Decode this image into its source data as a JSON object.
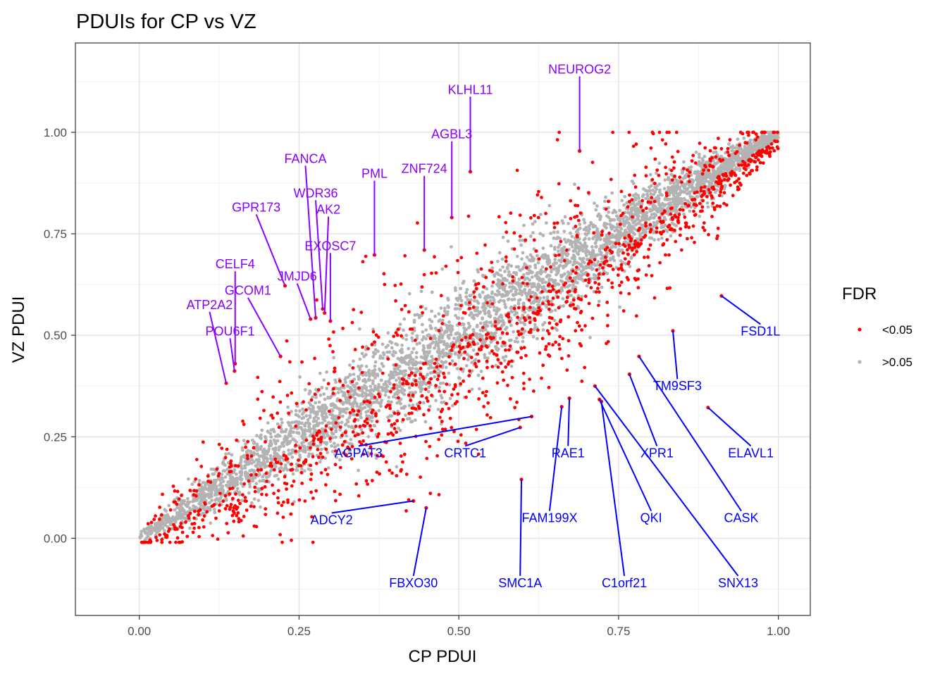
{
  "chart_data": {
    "type": "scatter",
    "title": "PDUIs for CP vs VZ",
    "xlabel": "CP PDUI",
    "ylabel": "VZ PDUI",
    "xlim": [
      -0.1,
      1.05
    ],
    "ylim": [
      -0.19,
      1.22
    ],
    "xticks": [
      0.0,
      0.25,
      0.5,
      0.75,
      1.0
    ],
    "xtick_labels": [
      "0.00",
      "0.25",
      "0.50",
      "0.75",
      "1.00"
    ],
    "yticks": [
      0.0,
      0.25,
      0.5,
      0.75,
      1.0
    ],
    "ytick_labels": [
      "0.00",
      "0.25",
      "0.50",
      "0.75",
      "1.00"
    ],
    "grid": true,
    "legend": {
      "title": "FDR",
      "position": "right",
      "entries": [
        {
          "label": "<0.05",
          "color": "#ff0000"
        },
        {
          "label": ">0.05",
          "color": "#b3b3b3"
        }
      ]
    },
    "colors": {
      "sig": "#ff0000",
      "nonsig": "#b3b3b3",
      "up_label": "#8b00ff",
      "down_label": "#0000ff"
    },
    "labeled_points": [
      {
        "gene": "NEUROG2",
        "x": 0.689,
        "y": 0.954,
        "group": "up",
        "label_x": 0.689,
        "label_y": 1.155
      },
      {
        "gene": "KLHL11",
        "x": 0.518,
        "y": 0.903,
        "group": "up",
        "label_x": 0.518,
        "label_y": 1.105
      },
      {
        "gene": "AGBL3",
        "x": 0.489,
        "y": 0.79,
        "group": "up",
        "label_x": 0.489,
        "label_y": 0.995
      },
      {
        "gene": "ZNF724",
        "x": 0.446,
        "y": 0.71,
        "group": "up",
        "label_x": 0.446,
        "label_y": 0.91
      },
      {
        "gene": "PML",
        "x": 0.368,
        "y": 0.698,
        "group": "up",
        "label_x": 0.368,
        "label_y": 0.898
      },
      {
        "gene": "FANCA",
        "x": 0.276,
        "y": 0.543,
        "group": "up",
        "label_x": 0.26,
        "label_y": 0.935
      },
      {
        "gene": "WDR36",
        "x": 0.287,
        "y": 0.565,
        "group": "up",
        "label_x": 0.276,
        "label_y": 0.85
      },
      {
        "gene": "AK2",
        "x": 0.29,
        "y": 0.555,
        "group": "up",
        "label_x": 0.296,
        "label_y": 0.81
      },
      {
        "gene": "EXOSC7",
        "x": 0.299,
        "y": 0.535,
        "group": "up",
        "label_x": 0.299,
        "label_y": 0.72
      },
      {
        "gene": "GPR173",
        "x": 0.228,
        "y": 0.622,
        "group": "up",
        "label_x": 0.183,
        "label_y": 0.815
      },
      {
        "gene": "JMJD6",
        "x": 0.268,
        "y": 0.54,
        "group": "up",
        "label_x": 0.247,
        "label_y": 0.645
      },
      {
        "gene": "CELF4",
        "x": 0.15,
        "y": 0.43,
        "group": "up",
        "label_x": 0.15,
        "label_y": 0.675
      },
      {
        "gene": "GCOM1",
        "x": 0.221,
        "y": 0.448,
        "group": "up",
        "label_x": 0.17,
        "label_y": 0.61
      },
      {
        "gene": "ATP2A2",
        "x": 0.136,
        "y": 0.382,
        "group": "up",
        "label_x": 0.11,
        "label_y": 0.575
      },
      {
        "gene": "POU6F1",
        "x": 0.149,
        "y": 0.412,
        "group": "up",
        "label_x": 0.142,
        "label_y": 0.51
      },
      {
        "gene": "FSD1L",
        "x": 0.911,
        "y": 0.597,
        "group": "down",
        "label_x": 0.972,
        "label_y": 0.51
      },
      {
        "gene": "TM9SF3",
        "x": 0.835,
        "y": 0.511,
        "group": "down",
        "label_x": 0.842,
        "label_y": 0.375
      },
      {
        "gene": "AGPAT3",
        "x": 0.614,
        "y": 0.3,
        "group": "down",
        "label_x": 0.343,
        "label_y": 0.21
      },
      {
        "gene": "CRTC1",
        "x": 0.596,
        "y": 0.273,
        "group": "down",
        "label_x": 0.51,
        "label_y": 0.21
      },
      {
        "gene": "RAE1",
        "x": 0.673,
        "y": 0.345,
        "group": "down",
        "label_x": 0.671,
        "label_y": 0.21
      },
      {
        "gene": "XPR1",
        "x": 0.767,
        "y": 0.404,
        "group": "down",
        "label_x": 0.81,
        "label_y": 0.21
      },
      {
        "gene": "ELAVL1",
        "x": 0.89,
        "y": 0.322,
        "group": "down",
        "label_x": 0.957,
        "label_y": 0.21
      },
      {
        "gene": "FAM199X",
        "x": 0.661,
        "y": 0.324,
        "group": "down",
        "label_x": 0.642,
        "label_y": 0.05
      },
      {
        "gene": "QKI",
        "x": 0.72,
        "y": 0.342,
        "group": "down",
        "label_x": 0.801,
        "label_y": 0.05
      },
      {
        "gene": "CASK",
        "x": 0.782,
        "y": 0.448,
        "group": "down",
        "label_x": 0.942,
        "label_y": 0.05
      },
      {
        "gene": "ADCY2",
        "x": 0.429,
        "y": 0.092,
        "group": "down",
        "label_x": 0.301,
        "label_y": 0.045
      },
      {
        "gene": "FBXO30",
        "x": 0.449,
        "y": 0.075,
        "group": "down",
        "label_x": 0.429,
        "label_y": -0.11
      },
      {
        "gene": "SMC1A",
        "x": 0.598,
        "y": 0.145,
        "group": "down",
        "label_x": 0.596,
        "label_y": -0.11
      },
      {
        "gene": "C1orf21",
        "x": 0.723,
        "y": 0.337,
        "group": "down",
        "label_x": 0.759,
        "label_y": -0.11
      },
      {
        "gene": "SNX13",
        "x": 0.713,
        "y": 0.375,
        "group": "down",
        "label_x": 0.937,
        "label_y": -0.11
      }
    ]
  }
}
